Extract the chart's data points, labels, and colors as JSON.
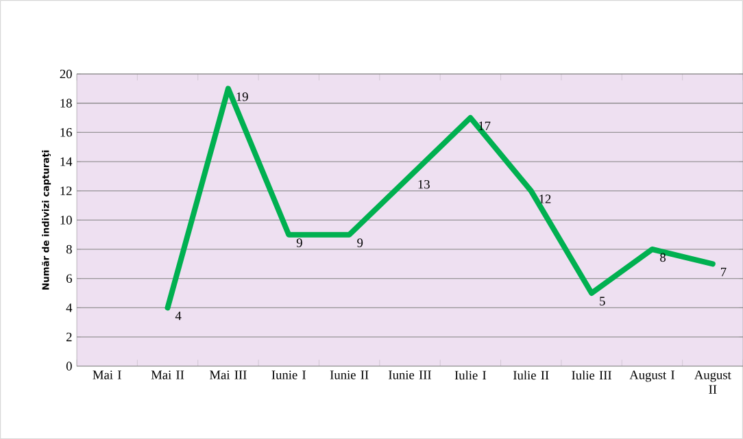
{
  "chart_data": {
    "type": "line",
    "ylabel": "Număr de indivizi capturaţi",
    "categories": [
      "Mai I",
      "Mai II",
      "Mai III",
      "Iunie I",
      "Iunie II",
      "Iunie III",
      "Iulie I",
      "Iulie II",
      "Iulie III",
      "August I",
      "August II"
    ],
    "values": [
      null,
      4,
      19,
      9,
      9,
      13,
      17,
      12,
      5,
      8,
      7
    ],
    "color": "#00b050",
    "ylim": [
      0,
      20
    ],
    "yticks": [
      0,
      2,
      4,
      6,
      8,
      10,
      12,
      14,
      16,
      18,
      20
    ],
    "grid": "y",
    "data_labels": true
  }
}
